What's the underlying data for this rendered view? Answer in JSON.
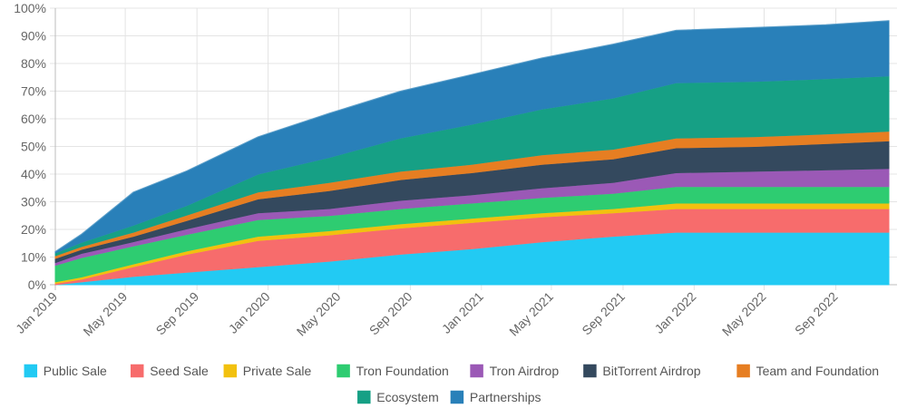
{
  "chart_data": {
    "type": "area",
    "stacked": true,
    "x": [
      "2019-01-01",
      "2019-02-15",
      "2019-05-15",
      "2019-08-15",
      "2019-12-15",
      "2020-04-15",
      "2020-08-15",
      "2020-12-15",
      "2021-04-15",
      "2021-08-15",
      "2021-12-01",
      "2022-04-15",
      "2022-08-15",
      "2022-12-01"
    ],
    "x_ticks": [
      "Jan 2019",
      "May 2019",
      "Sep 2019",
      "Jan 2020",
      "May 2020",
      "Sep 2020",
      "Jan 2021",
      "May 2021",
      "Sep 2021",
      "Jan 2022",
      "May 2022",
      "Sep 2022"
    ],
    "x_tick_dates": [
      "2019-01-01",
      "2019-05-01",
      "2019-09-01",
      "2020-01-01",
      "2020-05-01",
      "2020-09-01",
      "2021-01-01",
      "2021-05-01",
      "2021-09-01",
      "2022-01-01",
      "2022-05-01",
      "2022-09-01"
    ],
    "x_range": [
      "2019-01-01",
      "2022-12-15"
    ],
    "y_ticks": [
      "0%",
      "10%",
      "20%",
      "30%",
      "40%",
      "50%",
      "60%",
      "70%",
      "80%",
      "90%",
      "100%"
    ],
    "ylim": [
      0,
      100
    ],
    "y_unit": "%",
    "grid": true,
    "legend_position": "bottom",
    "series": [
      {
        "name": "Public Sale",
        "color": "#22CAF3",
        "values": [
          0,
          1,
          3,
          4.5,
          6.5,
          8.5,
          11,
          13,
          15.5,
          17.5,
          19,
          19,
          19,
          19
        ]
      },
      {
        "name": "Seed Sale",
        "color": "#F76C6C",
        "values": [
          0.5,
          1,
          3.5,
          6.5,
          9.5,
          9.5,
          9.5,
          9.5,
          9,
          8.5,
          8.5,
          8.5,
          8.5,
          8.5
        ]
      },
      {
        "name": "Private Sale",
        "color": "#F2C10F",
        "values": [
          0.5,
          0.8,
          1,
          1.2,
          1.5,
          1.5,
          1.5,
          1.5,
          1.5,
          1.5,
          2,
          2,
          2,
          2
        ]
      },
      {
        "name": "Tron Foundation",
        "color": "#2ECC71",
        "values": [
          6,
          7,
          6.5,
          6,
          6,
          5.5,
          5.5,
          5.5,
          5.5,
          5.5,
          6,
          6,
          6,
          6
        ]
      },
      {
        "name": "Tron Airdrop",
        "color": "#9B59B6",
        "values": [
          1,
          1.5,
          1.5,
          2,
          2.5,
          2.5,
          3,
          3,
          3.5,
          4,
          5,
          5.5,
          6,
          6.5
        ]
      },
      {
        "name": "BitTorrent Airdrop",
        "color": "#34495E",
        "values": [
          1.5,
          1.5,
          2,
          3,
          5,
          6.5,
          7.5,
          8,
          8.5,
          8.5,
          9,
          9,
          9.5,
          10
        ]
      },
      {
        "name": "Team and Foundation",
        "color": "#E67E22",
        "values": [
          1,
          1,
          1.5,
          2,
          2.5,
          3,
          3,
          3,
          3.5,
          3.5,
          3.5,
          3.5,
          3.5,
          3.5
        ]
      },
      {
        "name": "Ecosystem",
        "color": "#16A085",
        "values": [
          1,
          1.5,
          2.5,
          3.5,
          6.5,
          9,
          12,
          14.5,
          16.5,
          18.5,
          20,
          20,
          20,
          20
        ]
      },
      {
        "name": "Partnerships",
        "color": "#2980B9",
        "values": [
          0.5,
          3,
          12,
          12.5,
          13.5,
          16,
          17,
          18,
          18.5,
          19.5,
          19,
          19.5,
          19.5,
          20
        ]
      }
    ]
  }
}
